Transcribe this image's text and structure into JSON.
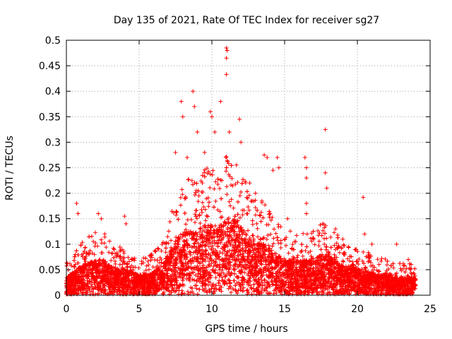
{
  "chart_data": {
    "type": "scatter",
    "title": "Day 135 of 2021, Rate Of TEC Index for receiver sg27",
    "xlabel": "GPS time / hours",
    "ylabel": "ROTI / TECUs",
    "xlim": [
      0,
      25
    ],
    "ylim": [
      0,
      0.5
    ],
    "xticks": [
      0,
      5,
      10,
      15,
      20,
      25
    ],
    "yticks": [
      0,
      0.05,
      0.1,
      0.15,
      0.2,
      0.25,
      0.3,
      0.35,
      0.4,
      0.45,
      0.5
    ],
    "grid": true,
    "marker": "plus",
    "color": "#ff0000",
    "x_range_of_data": [
      0,
      24
    ],
    "baseline_envelope": [
      [
        0.0,
        0.03
      ],
      [
        0.5,
        0.04
      ],
      [
        1.0,
        0.05
      ],
      [
        1.5,
        0.055
      ],
      [
        2.0,
        0.06
      ],
      [
        2.5,
        0.06
      ],
      [
        3.0,
        0.05
      ],
      [
        3.5,
        0.045
      ],
      [
        4.0,
        0.045
      ],
      [
        4.5,
        0.04
      ],
      [
        5.0,
        0.035
      ],
      [
        5.5,
        0.035
      ],
      [
        6.0,
        0.04
      ],
      [
        6.5,
        0.05
      ],
      [
        7.0,
        0.07
      ],
      [
        7.5,
        0.09
      ],
      [
        8.0,
        0.11
      ],
      [
        8.5,
        0.11
      ],
      [
        9.0,
        0.11
      ],
      [
        9.5,
        0.12
      ],
      [
        10.0,
        0.12
      ],
      [
        10.5,
        0.12
      ],
      [
        11.0,
        0.13
      ],
      [
        11.5,
        0.13
      ],
      [
        12.0,
        0.12
      ],
      [
        12.5,
        0.1
      ],
      [
        13.0,
        0.09
      ],
      [
        13.5,
        0.09
      ],
      [
        14.0,
        0.08
      ],
      [
        14.5,
        0.07
      ],
      [
        15.0,
        0.06
      ],
      [
        15.5,
        0.06
      ],
      [
        16.0,
        0.06
      ],
      [
        16.5,
        0.06
      ],
      [
        17.0,
        0.06
      ],
      [
        17.5,
        0.07
      ],
      [
        18.0,
        0.07
      ],
      [
        18.5,
        0.06
      ],
      [
        19.0,
        0.05
      ],
      [
        19.5,
        0.05
      ],
      [
        20.0,
        0.045
      ],
      [
        20.5,
        0.04
      ],
      [
        21.0,
        0.04
      ],
      [
        21.5,
        0.035
      ],
      [
        22.0,
        0.035
      ],
      [
        22.5,
        0.03
      ],
      [
        23.0,
        0.03
      ],
      [
        23.5,
        0.03
      ],
      [
        24.0,
        0.03
      ]
    ],
    "notable_points": [
      [
        0.7,
        0.18
      ],
      [
        0.8,
        0.16
      ],
      [
        2.2,
        0.16
      ],
      [
        2.4,
        0.15
      ],
      [
        4.0,
        0.155
      ],
      [
        4.1,
        0.14
      ],
      [
        7.9,
        0.38
      ],
      [
        8.0,
        0.35
      ],
      [
        7.5,
        0.28
      ],
      [
        8.3,
        0.27
      ],
      [
        8.7,
        0.4
      ],
      [
        8.8,
        0.37
      ],
      [
        9.0,
        0.32
      ],
      [
        9.5,
        0.28
      ],
      [
        9.9,
        0.36
      ],
      [
        10.0,
        0.35
      ],
      [
        10.2,
        0.32
      ],
      [
        10.6,
        0.38
      ],
      [
        11.0,
        0.485
      ],
      [
        11.05,
        0.48
      ],
      [
        11.0,
        0.465
      ],
      [
        11.0,
        0.433
      ],
      [
        11.2,
        0.32
      ],
      [
        11.9,
        0.345
      ],
      [
        12.0,
        0.3
      ],
      [
        13.6,
        0.275
      ],
      [
        13.8,
        0.27
      ],
      [
        14.2,
        0.245
      ],
      [
        14.5,
        0.27
      ],
      [
        14.6,
        0.25
      ],
      [
        16.4,
        0.27
      ],
      [
        16.5,
        0.25
      ],
      [
        16.5,
        0.23
      ],
      [
        17.8,
        0.325
      ],
      [
        17.8,
        0.24
      ],
      [
        17.9,
        0.21
      ],
      [
        20.4,
        0.192
      ],
      [
        20.5,
        0.12
      ],
      [
        16.5,
        0.18
      ],
      [
        16.5,
        0.16
      ],
      [
        13.0,
        0.2
      ],
      [
        12.6,
        0.22
      ],
      [
        14.0,
        0.16
      ],
      [
        15.2,
        0.15
      ],
      [
        18.5,
        0.13
      ],
      [
        19.0,
        0.11
      ],
      [
        21.0,
        0.1
      ],
      [
        22.7,
        0.1
      ],
      [
        23.5,
        0.07
      ],
      [
        23.7,
        0.06
      ]
    ],
    "point_count": 6000
  }
}
